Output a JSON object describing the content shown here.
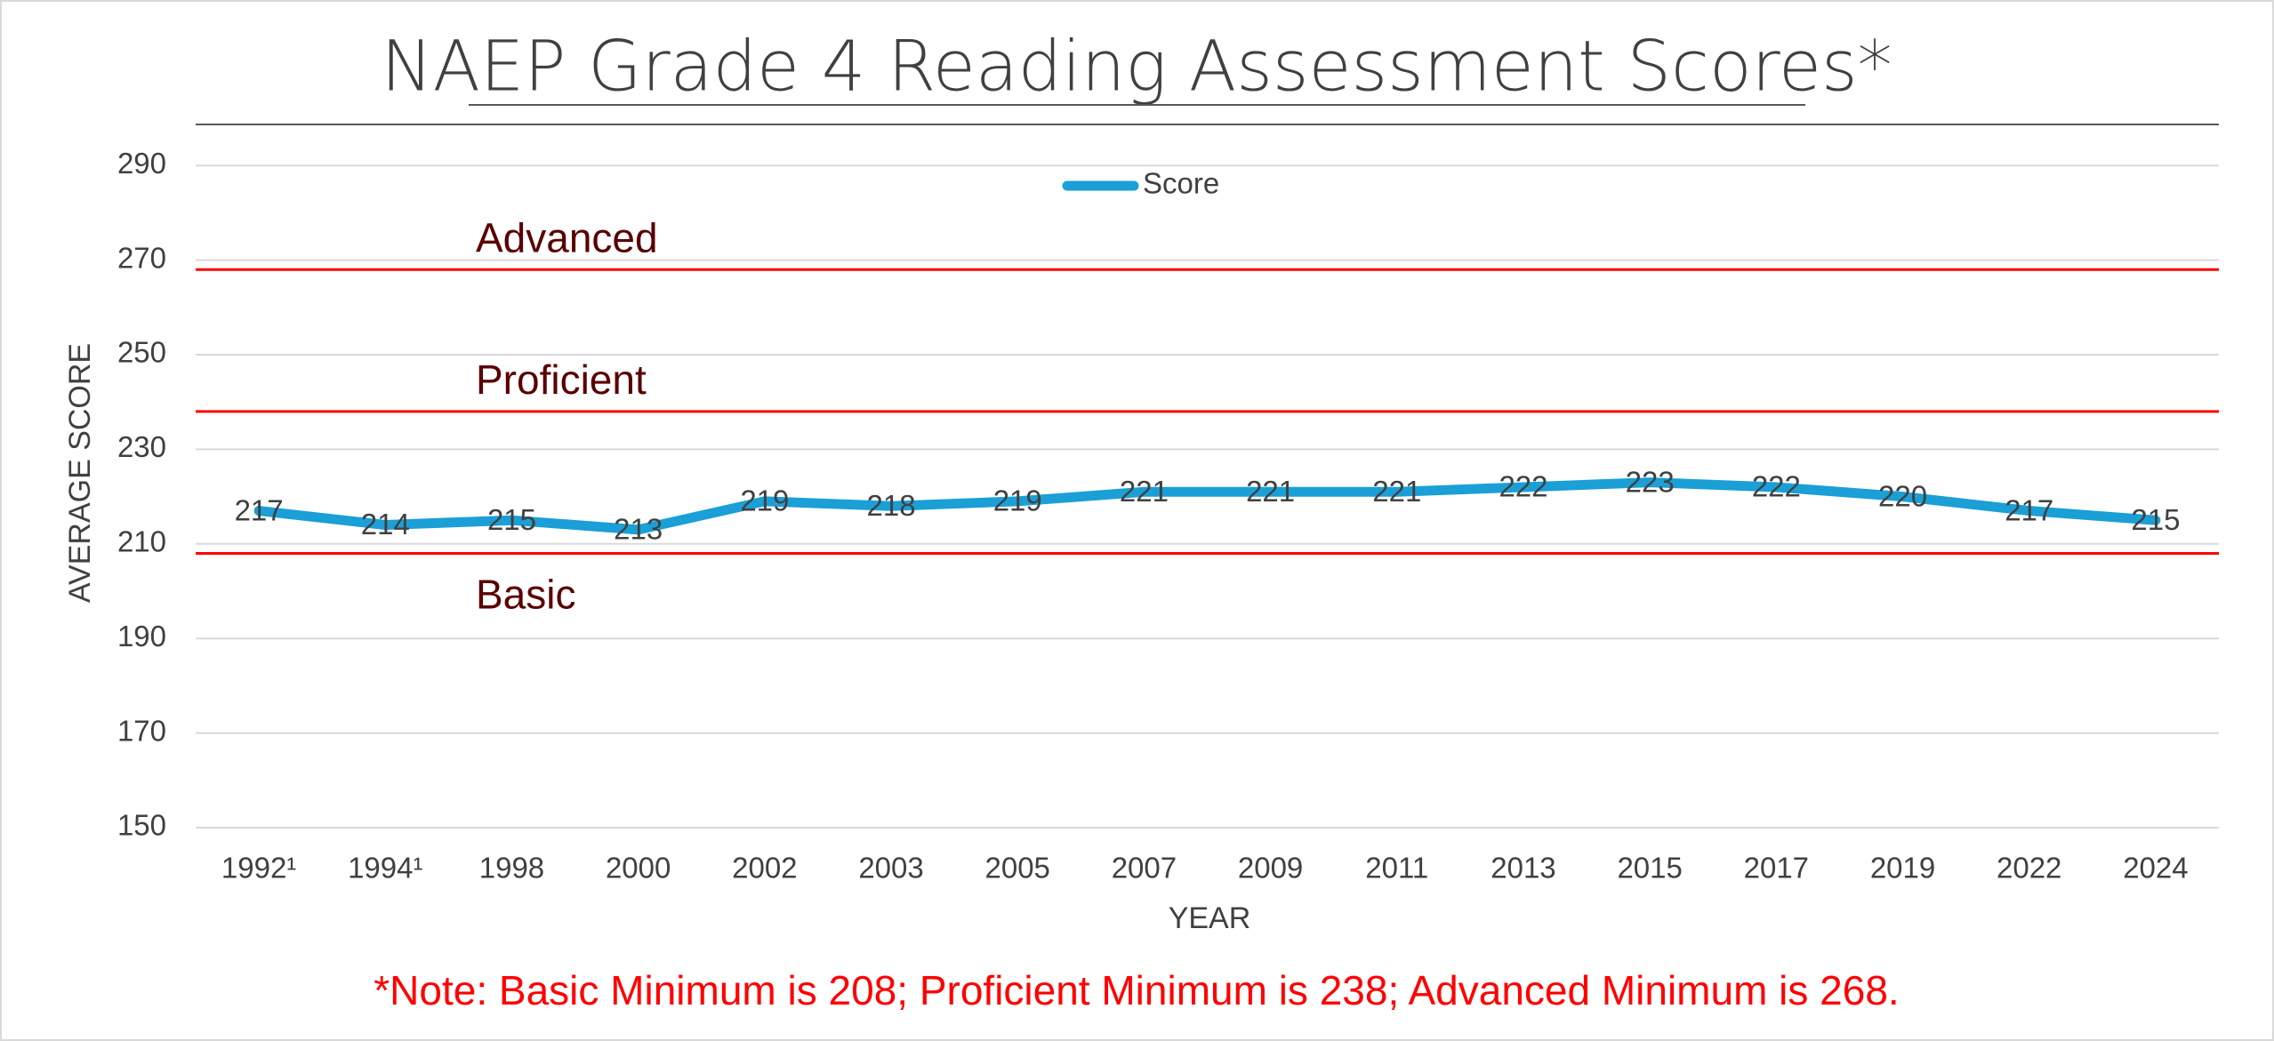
{
  "chart_data": {
    "type": "line",
    "title": "NAEP Grade 4 Reading Assessment Scores*",
    "x_label": "YEAR",
    "y_label": "AVERAGE SCORE",
    "categories": [
      "1992¹",
      "1994¹",
      "1998",
      "2000",
      "2002",
      "2003",
      "2005",
      "2007",
      "2009",
      "2011",
      "2013",
      "2015",
      "2017",
      "2019",
      "2022",
      "2024"
    ],
    "series": [
      {
        "name": "Score",
        "color": "#1a9fd6",
        "values": [
          217,
          214,
          215,
          213,
          219,
          218,
          219,
          221,
          221,
          221,
          222,
          223,
          222,
          220,
          217,
          215
        ]
      }
    ],
    "ylim": [
      150,
      300
    ],
    "yticks": [
      150,
      170,
      190,
      210,
      230,
      250,
      270,
      290
    ],
    "grid": true,
    "legend": "top",
    "thresholds": [
      {
        "label": "Basic",
        "value": 208,
        "color": "#ff0000"
      },
      {
        "label": "Proficient",
        "value": 238,
        "color": "#ff0000"
      },
      {
        "label": "Advanced",
        "value": 268,
        "color": "#ff0000"
      }
    ],
    "note": "*Note: Basic Minimum is 208; Proficient Minimum is 238; Advanced Minimum is 268."
  }
}
